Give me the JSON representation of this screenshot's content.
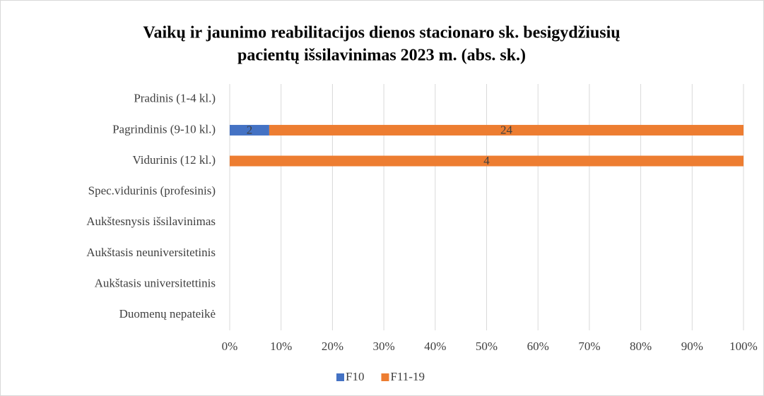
{
  "chart_data": {
    "type": "bar",
    "orientation": "horizontal",
    "stacking": "percent",
    "title": [
      "Vaikų ir jaunimo reabilitacijos dienos stacionaro sk. besigydžiusių",
      "pacientų išsilavinimas 2023 m. (abs. sk.)"
    ],
    "categories": [
      "Pradinis (1-4 kl.)",
      "Pagrindinis (9-10 kl.)",
      "Vidurinis (12 kl.)",
      "Spec.vidurinis (profesinis)",
      "Aukštesnysis išsilavinimas",
      "Aukštasis neuniversitetinis",
      "Aukštasis universitettinis",
      "Duomenų nepateikė"
    ],
    "series": [
      {
        "name": "F10",
        "color": "#4472c4",
        "values": [
          null,
          2,
          null,
          null,
          null,
          null,
          null,
          null
        ]
      },
      {
        "name": "F11-19",
        "color": "#ed7d31",
        "values": [
          null,
          24,
          4,
          null,
          null,
          null,
          null,
          null
        ]
      }
    ],
    "xlim": [
      0,
      100
    ],
    "xticks": [
      {
        "value": 0,
        "label": "0%"
      },
      {
        "value": 10,
        "label": "10%"
      },
      {
        "value": 20,
        "label": "20%"
      },
      {
        "value": 30,
        "label": "30%"
      },
      {
        "value": 40,
        "label": "40%"
      },
      {
        "value": 50,
        "label": "50%"
      },
      {
        "value": 60,
        "label": "60%"
      },
      {
        "value": 70,
        "label": "70%"
      },
      {
        "value": 80,
        "label": "80%"
      },
      {
        "value": 90,
        "label": "90%"
      },
      {
        "value": 100,
        "label": "100%"
      }
    ],
    "grid": true,
    "legend": "bottom"
  }
}
